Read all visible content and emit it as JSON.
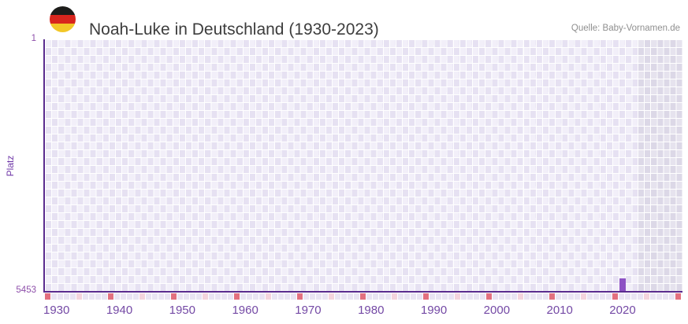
{
  "header": {
    "title": "Noah-Luke in Deutschland (1930-2023)",
    "source": "Quelle: Baby-Vornamen.de",
    "flag_icon": "germany-flag-icon"
  },
  "chart_data": {
    "type": "bar",
    "title": "Noah-Luke in Deutschland (1930-2023)",
    "xlabel": "",
    "ylabel": "Platz",
    "x_range": [
      1930,
      2023
    ],
    "x_ticks": [
      1930,
      1940,
      1950,
      1960,
      1970,
      1980,
      1990,
      2000,
      2010,
      2020
    ],
    "y_axis": {
      "top_label": "1",
      "bottom_label": "5453",
      "min": 1,
      "max": 5453,
      "inverted": true
    },
    "series": [
      {
        "name": "Platz",
        "points": [
          {
            "x": 2020,
            "y": 5181
          }
        ]
      }
    ],
    "shaded_region": {
      "from": 2022,
      "to": 2023
    },
    "legend": "none",
    "grid": "checkered-lavender"
  },
  "colors": {
    "axis": "#5a2b8e",
    "bar": "#8d52c4",
    "tick_label": "#7449a5",
    "y_tick_label": "#8e4faa",
    "grid_light": "#f2eff9",
    "grid_dark": "#e6e1f2",
    "shade_light": "#e6e3ee",
    "shade_dark": "#dcd8e7",
    "marker_red": "#e2707f",
    "marker_pink": "#f4d4dd",
    "marker_default": "#e9e4f3",
    "title_text": "#3d3d3d",
    "source_text": "#8f8f8f",
    "flag_black": "#1c1c1a",
    "flag_red": "#d8251d",
    "flag_gold": "#f2c727"
  }
}
